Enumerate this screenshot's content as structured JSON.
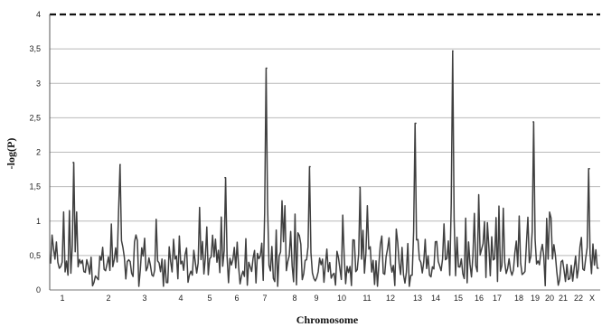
{
  "chart_data": {
    "type": "line",
    "title": "",
    "xlabel": "Chromosome",
    "ylabel": "-log(P)",
    "ylim": [
      0,
      4
    ],
    "yticks": [
      {
        "value": 0,
        "label": "0"
      },
      {
        "value": 0.5,
        "label": "0,5"
      },
      {
        "value": 1,
        "label": "1"
      },
      {
        "value": 1.5,
        "label": "1,5"
      },
      {
        "value": 2,
        "label": "2"
      },
      {
        "value": 2.5,
        "label": "2,5"
      },
      {
        "value": 3,
        "label": "3"
      },
      {
        "value": 3.5,
        "label": "3,5"
      },
      {
        "value": 4,
        "label": "4"
      }
    ],
    "grid": "horizontal",
    "threshold": 4,
    "chromosomes": [
      "1",
      "2",
      "3",
      "4",
      "5",
      "6",
      "7",
      "8",
      "9",
      "10",
      "11",
      "12",
      "13",
      "14",
      "15",
      "16",
      "17",
      "18",
      "19",
      "20",
      "21",
      "22",
      "X"
    ],
    "peaks": [
      {
        "chromosome": "1",
        "value": 1.85
      },
      {
        "chromosome": "2",
        "value": 1.82
      },
      {
        "chromosome": "5",
        "value": 1.63
      },
      {
        "chromosome": "7",
        "value": 3.22
      },
      {
        "chromosome": "9",
        "value": 1.79
      },
      {
        "chromosome": "11",
        "value": 1.49
      },
      {
        "chromosome": "13",
        "value": 2.42
      },
      {
        "chromosome": "15",
        "value": 3.47
      },
      {
        "chromosome": "19",
        "value": 2.44
      },
      {
        "chromosome": "X",
        "value": 1.76
      }
    ]
  }
}
